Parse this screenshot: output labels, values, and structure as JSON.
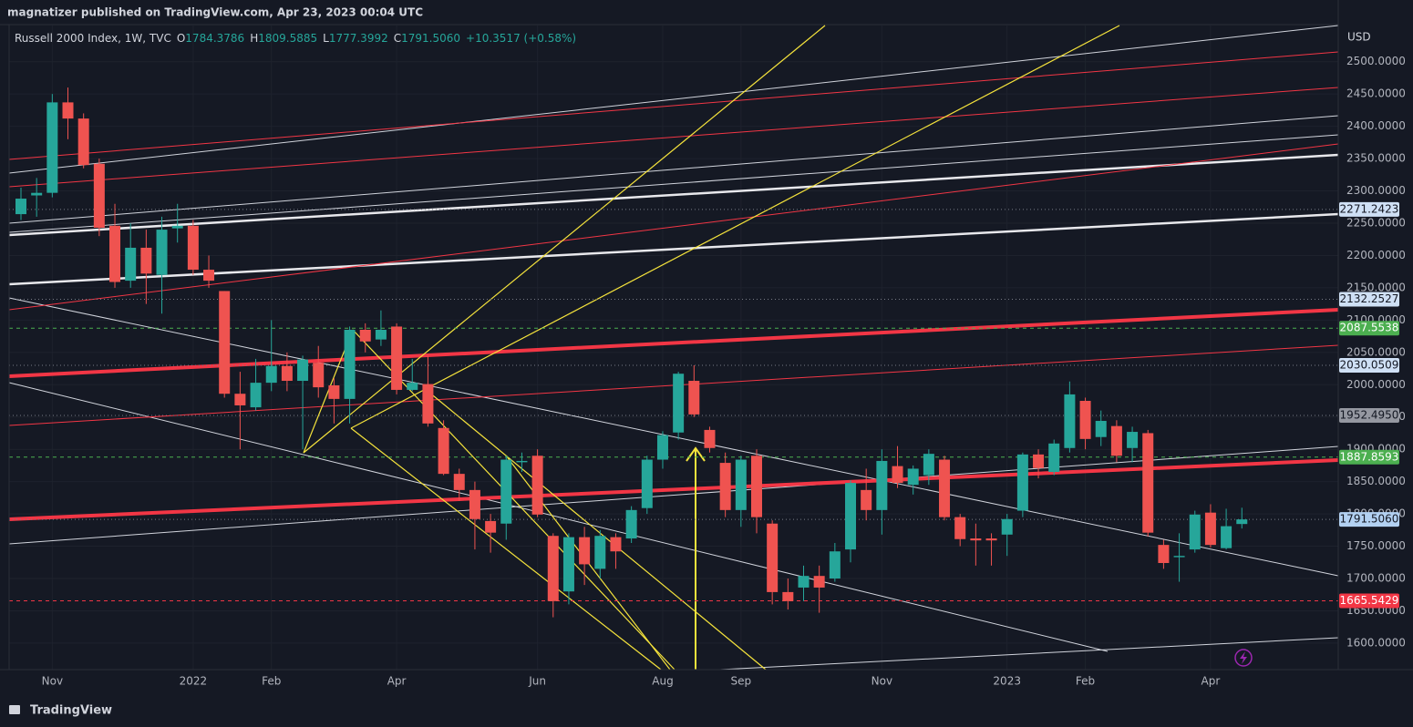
{
  "chart_data": {
    "type": "candlestick",
    "publisher": "magnatizer published on TradingView.com, Apr 23, 2023 00:04 UTC",
    "currency": "USD",
    "brand": "TradingView",
    "legend": {
      "name": "Russell 2000 Index, 1W, TVC",
      "fields": [
        {
          "label": "O",
          "value": "1784.3786"
        },
        {
          "label": "H",
          "value": "1809.5885"
        },
        {
          "label": "L",
          "value": "1777.3992"
        },
        {
          "label": "C",
          "value": "1791.5060"
        }
      ],
      "change": "+10.3517 (+0.58%)"
    },
    "up_color": "#26a69a",
    "down_color": "#ef5350",
    "categories": [
      null,
      null,
      "Nov",
      null,
      null,
      null,
      null,
      null,
      null,
      null,
      null,
      "2022",
      null,
      null,
      null,
      null,
      "Feb",
      null,
      null,
      null,
      null,
      null,
      null,
      null,
      "Apr",
      null,
      null,
      null,
      null,
      null,
      null,
      null,
      null,
      "Jun",
      null,
      null,
      null,
      null,
      null,
      null,
      null,
      "Aug",
      null,
      null,
      null,
      null,
      "Sep",
      null,
      null,
      null,
      null,
      null,
      null,
      null,
      null,
      "Nov",
      null,
      null,
      null,
      null,
      null,
      null,
      null,
      "2023",
      null,
      null,
      null,
      null,
      "Feb",
      null,
      null,
      null,
      null,
      null,
      null,
      null,
      "Apr",
      null,
      null
    ],
    "series": [
      {
        "name": "Russell 2000 Index, 1W, TVC",
        "open": [
          2264,
          2293,
          2297,
          2437,
          2412,
          2342,
          2246,
          2161,
          2212,
          2170,
          2242,
          2246,
          2178,
          2145,
          1986,
          1965,
          2003,
          2029,
          2006,
          2034,
          1999,
          1978,
          2085,
          2070,
          2090,
          1992,
          2001,
          1933,
          1862,
          1837,
          1789,
          1785,
          1880,
          1890,
          1766,
          1680,
          1764,
          1715,
          1764,
          1762,
          1809,
          1884,
          1926,
          2006,
          1930,
          1879,
          1806,
          1890,
          1785,
          1679,
          1686,
          1704,
          1700,
          1745,
          1837,
          1806,
          1874,
          1845,
          1860,
          1884,
          1795,
          1762,
          1762,
          1768,
          1805,
          1892,
          1865,
          1902,
          1975,
          1919,
          1936,
          1902,
          1925,
          1752,
          1733,
          1745,
          1802,
          1747,
          1784.3786
        ],
        "high": [
          2305,
          2320,
          2450,
          2460,
          2420,
          2350,
          2280,
          2250,
          2240,
          2260,
          2280,
          2255,
          2200,
          2145,
          2020,
          2040,
          2100,
          2050,
          2045,
          2060,
          2010,
          2090,
          2095,
          2115,
          2095,
          2040,
          2045,
          1945,
          1870,
          1850,
          1800,
          1890,
          1895,
          1900,
          1770,
          1770,
          1780,
          1775,
          1770,
          1812,
          1890,
          1928,
          2020,
          2030,
          1935,
          1895,
          1890,
          1900,
          1790,
          1700,
          1720,
          1720,
          1755,
          1852,
          1870,
          1900,
          1905,
          1875,
          1900,
          1890,
          1800,
          1785,
          1770,
          1800,
          1895,
          1900,
          1915,
          2005,
          1980,
          1960,
          1945,
          1935,
          1930,
          1760,
          1770,
          1805,
          1815,
          1808,
          1809.5885
        ],
        "low": [
          2255,
          2260,
          2290,
          2380,
          2335,
          2230,
          2150,
          2150,
          2125,
          2110,
          2220,
          2170,
          2150,
          1980,
          1900,
          1960,
          1990,
          1990,
          1900,
          1980,
          1940,
          1940,
          2050,
          2060,
          1985,
          1990,
          1935,
          1860,
          1820,
          1745,
          1740,
          1760,
          1865,
          1795,
          1640,
          1660,
          1690,
          1700,
          1715,
          1755,
          1800,
          1870,
          1915,
          1950,
          1895,
          1795,
          1780,
          1770,
          1660,
          1652,
          1665,
          1647,
          1695,
          1725,
          1790,
          1768,
          1840,
          1830,
          1845,
          1790,
          1750,
          1720,
          1720,
          1735,
          1795,
          1855,
          1860,
          1895,
          1900,
          1905,
          1880,
          1880,
          1765,
          1715,
          1695,
          1740,
          1748,
          1745,
          1777.3992
        ],
        "close": [
          2288,
          2297,
          2437,
          2412,
          2340,
          2243,
          2159,
          2212,
          2172,
          2240,
          2246,
          2178,
          2161,
          1986,
          1968,
          2003,
          2029,
          2006,
          2039,
          1996,
          1978,
          2085,
          2067,
          2085,
          1992,
          2003,
          1940,
          1862,
          1837,
          1792,
          1771,
          1884,
          1882,
          1799,
          1665,
          1764,
          1722,
          1766,
          1742,
          1806,
          1884,
          1922,
          2017,
          1954,
          1902,
          1806,
          1884,
          1795,
          1679,
          1665,
          1704,
          1686,
          1742,
          1848,
          1806,
          1882,
          1848,
          1870,
          1893,
          1795,
          1761,
          1759,
          1759,
          1792,
          1892,
          1871,
          1909,
          1985,
          1916,
          1944,
          1890,
          1927,
          1771,
          1724,
          1735,
          1799,
          1752,
          1781,
          1791.506
        ]
      }
    ],
    "price_lines": [
      {
        "value": 2271.2423,
        "color": "#cfe0f5",
        "text_color": "#131722",
        "style": "dotted"
      },
      {
        "value": 2132.2527,
        "color": "#cfe0f5",
        "text_color": "#131722",
        "style": "dotted"
      },
      {
        "value": 2087.5538,
        "color": "#4caf50",
        "text_color": "#ffffff",
        "style": "dashed"
      },
      {
        "value": 2030.0509,
        "color": "#cfe0f5",
        "text_color": "#131722",
        "style": "dotted"
      },
      {
        "value": {
          "value": 1952.495,
          "label": "1952.4950"
        },
        "color": "#9598a1",
        "text_color": "#131722",
        "style": "dotted"
      },
      {
        "value": 1887.8593,
        "color": "#4caf50",
        "text_color": "#ffffff",
        "style": "dashed"
      },
      {
        "value": {
          "value": 1791.506,
          "label": "1791.5060"
        },
        "color": "#b3d1f2",
        "text_color": "#131722",
        "style": "dotted"
      },
      {
        "value": 1665.5429,
        "color": "#f23645",
        "text_color": "#ffffff",
        "style": "dashed"
      }
    ],
    "ylim": [
      1559,
      2556
    ],
    "yticks": [
      {
        "value": 1600,
        "label": "1600.0000"
      },
      {
        "value": 1650,
        "label": "1650.0000"
      },
      {
        "value": 1700,
        "label": "1700.0000"
      },
      {
        "value": 1750,
        "label": "1750.0000"
      },
      {
        "value": 1800,
        "label": "1800.0000"
      },
      {
        "value": 1850,
        "label": "1850.0000"
      },
      {
        "value": 1900,
        "label": "1900.0000"
      },
      {
        "value": 1950,
        "label": "1950.0000"
      },
      {
        "value": 2000,
        "label": "2000.0000"
      },
      {
        "value": 2050,
        "label": "2050.0000"
      },
      {
        "value": 2100,
        "label": "2100.0000"
      },
      {
        "value": 2150,
        "label": "2150.0000"
      },
      {
        "value": 2200,
        "label": "2200.0000"
      },
      {
        "value": 2250,
        "label": "2250.0000"
      },
      {
        "value": 2300,
        "label": "2300.0000"
      },
      {
        "value": 2350,
        "label": "2350.0000"
      },
      {
        "value": 2400,
        "label": "2400.0000"
      },
      {
        "value": 2450,
        "label": "2450.0000"
      },
      {
        "value": 2500,
        "label": "2500.0000"
      }
    ],
    "grid": true
  }
}
